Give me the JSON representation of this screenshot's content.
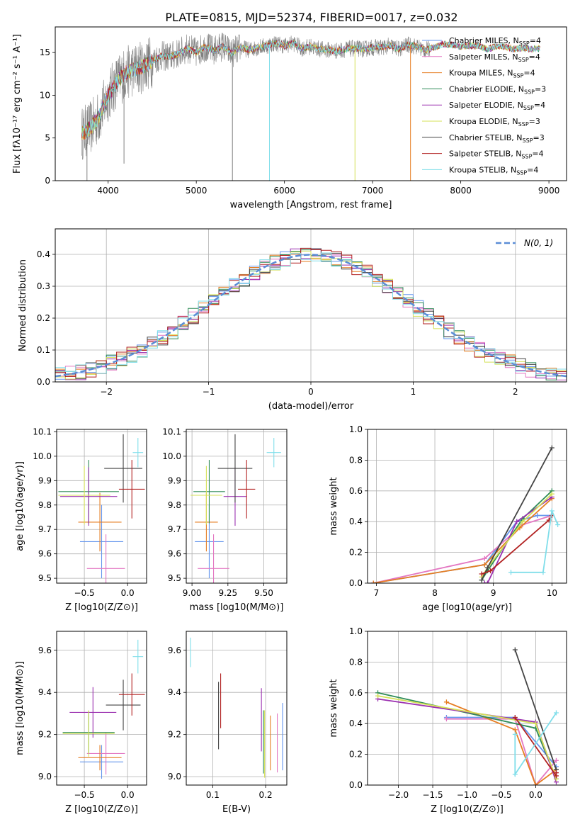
{
  "figure_title": "PLATE=0815, MJD=52374, FIBERID=0017, z=0.032",
  "colors": [
    "#6495ed",
    "#e377c2",
    "#e67e22",
    "#2e8b57",
    "#9b30b0",
    "#d4e157",
    "#444444",
    "#b22222",
    "#80deea"
  ],
  "chart_data": [
    {
      "id": "spectrum",
      "type": "line",
      "xlabel": "wavelength [Angstrom, rest frame]",
      "ylabel": "Flux [fλ10⁻¹⁷ erg cm⁻² s⁻¹ A⁻¹]",
      "xlim": [
        3400,
        9200
      ],
      "ylim": [
        0,
        18
      ],
      "xticks": [
        4000,
        5000,
        6000,
        7000,
        8000,
        9000
      ],
      "yticks": [
        0,
        5,
        10,
        15
      ],
      "grid": false,
      "legend_position": "top-right",
      "legend": [
        "Chabrier MILES, N_SSP=4",
        "Salpeter MILES, N_SSP=4",
        "Kroupa MILES, N_SSP=4",
        "Chabrier ELODIE, N_SSP=3",
        "Salpeter ELODIE, N_SSP=4",
        "Kroupa ELODIE, N_SSP=3",
        "Chabrier STELIB, N_SSP=3",
        "Salpeter STELIB, N_SSP=4",
        "Kroupa STELIB, N_SSP=4"
      ],
      "data_trace": {
        "x": [
          3700,
          3800,
          3900,
          4000,
          4100,
          4200,
          4300,
          4400,
          4500,
          4600,
          4700,
          4800,
          4900,
          5000,
          5100,
          5200,
          5300,
          5400,
          5500,
          5600,
          5700,
          5800,
          5900,
          6000,
          6100,
          6200,
          6300,
          6400,
          6500,
          6600,
          6700,
          6800,
          6900,
          7000,
          7100,
          7200,
          7300,
          7400,
          7500,
          7600,
          7700,
          7800,
          7900,
          8000,
          8100,
          8200,
          8300,
          8400,
          8500,
          8600,
          8700,
          8800,
          8900
        ],
        "y": [
          5.5,
          6.2,
          7.5,
          10.0,
          11.6,
          12.6,
          13.0,
          13.4,
          14.0,
          14.6,
          14.5,
          14.9,
          15.5,
          15.0,
          15.7,
          15.2,
          15.8,
          14.9,
          15.6,
          15.3,
          15.6,
          15.8,
          16.1,
          15.8,
          16.1,
          15.5,
          15.7,
          15.4,
          15.3,
          15.2,
          15.4,
          15.5,
          15.4,
          15.6,
          15.6,
          15.8,
          15.4,
          15.9,
          15.7,
          15.3,
          15.6,
          16.0,
          15.9,
          15.7,
          15.8,
          15.8,
          15.4,
          15.7,
          15.7,
          15.4,
          15.5,
          15.4,
          15.5
        ]
      }
    },
    {
      "id": "residuals",
      "type": "histogram",
      "xlabel": "(data-model)/error",
      "ylabel": "Normed distribution",
      "xlim": [
        -2.5,
        2.5
      ],
      "ylim": [
        0,
        0.48
      ],
      "xticks": [
        -2,
        -1,
        0,
        1,
        2
      ],
      "yticks": [
        0.0,
        0.1,
        0.2,
        0.3,
        0.4
      ],
      "grid": true,
      "legend_position": "top-right",
      "legend": [
        "N(0, 1)"
      ],
      "bin_width": 0.1
    },
    {
      "id": "age_vs_Z",
      "type": "errorbar",
      "xlabel": "Z [log10(Z/Z⊙)]",
      "ylabel": "age  [log10(age/yr)]",
      "xlim": [
        -0.82,
        0.22
      ],
      "ylim": [
        9.48,
        10.11
      ],
      "xticks": [
        -0.5,
        0.0
      ],
      "yticks": [
        9.5,
        9.6,
        9.7,
        9.8,
        9.9,
        10.0,
        10.1
      ],
      "grid": true,
      "points": [
        {
          "x": -0.3,
          "xerr": 0.25,
          "y": 9.65,
          "yerr": 0.15
        },
        {
          "x": -0.25,
          "xerr": 0.22,
          "y": 9.54,
          "yerr": 0.14
        },
        {
          "x": -0.32,
          "xerr": 0.25,
          "y": 9.73,
          "yerr": 0.12
        },
        {
          "x": -0.45,
          "xerr": 0.35,
          "y": 9.855,
          "yerr": 0.13
        },
        {
          "x": -0.45,
          "xerr": 0.33,
          "y": 9.835,
          "yerr": 0.12
        },
        {
          "x": -0.5,
          "xerr": 0.3,
          "y": 9.84,
          "yerr": 0.12
        },
        {
          "x": -0.05,
          "xerr": 0.22,
          "y": 9.95,
          "yerr": 0.14
        },
        {
          "x": 0.05,
          "xerr": 0.15,
          "y": 9.865,
          "yerr": 0.12
        },
        {
          "x": 0.12,
          "xerr": 0.06,
          "y": 10.015,
          "yerr": 0.06
        }
      ]
    },
    {
      "id": "age_vs_mass",
      "type": "errorbar",
      "xlabel": "mass [log10(M/M⊙)]",
      "ylabel": "",
      "xlim": [
        8.96,
        9.66
      ],
      "ylim": [
        9.48,
        10.11
      ],
      "xticks": [
        9.0,
        9.25,
        9.5
      ],
      "yticks": [
        9.5,
        9.6,
        9.7,
        9.8,
        9.9,
        10.0,
        10.1
      ],
      "grid": true,
      "points": [
        {
          "x": 9.12,
          "xerr": 0.1,
          "y": 9.65,
          "yerr": 0.15
        },
        {
          "x": 9.15,
          "xerr": 0.11,
          "y": 9.54,
          "yerr": 0.14
        },
        {
          "x": 9.1,
          "xerr": 0.08,
          "y": 9.73,
          "yerr": 0.12
        },
        {
          "x": 9.12,
          "xerr": 0.11,
          "y": 9.855,
          "yerr": 0.13
        },
        {
          "x": 9.3,
          "xerr": 0.08,
          "y": 9.835,
          "yerr": 0.12
        },
        {
          "x": 9.1,
          "xerr": 0.11,
          "y": 9.84,
          "yerr": 0.12
        },
        {
          "x": 9.3,
          "xerr": 0.12,
          "y": 9.95,
          "yerr": 0.14
        },
        {
          "x": 9.38,
          "xerr": 0.06,
          "y": 9.865,
          "yerr": 0.12
        },
        {
          "x": 9.57,
          "xerr": 0.05,
          "y": 10.015,
          "yerr": 0.06
        }
      ]
    },
    {
      "id": "mass_weight_vs_age",
      "type": "line",
      "xlabel": "age  [log10(age/yr)]",
      "ylabel": "mass weight",
      "xlim": [
        6.85,
        10.25
      ],
      "ylim": [
        0,
        1.0
      ],
      "xticks": [
        7,
        8,
        9,
        10
      ],
      "yticks": [
        0.0,
        0.2,
        0.4,
        0.6,
        0.8,
        1.0
      ],
      "grid": true,
      "series": [
        {
          "x": [
            6.95,
            8.85,
            9.4,
            9.75,
            10.0
          ],
          "y": [
            0.0,
            0.12,
            0.4,
            0.44,
            0.44
          ]
        },
        {
          "x": [
            6.95,
            8.85,
            9.5,
            10.0
          ],
          "y": [
            0.0,
            0.16,
            0.38,
            0.44
          ]
        },
        {
          "x": [
            6.95,
            8.85,
            9.45,
            10.0
          ],
          "y": [
            0.0,
            0.12,
            0.36,
            0.55
          ]
        },
        {
          "x": [
            8.8,
            8.9,
            9.5,
            10.0
          ],
          "y": [
            0.02,
            0.08,
            0.42,
            0.6
          ]
        },
        {
          "x": [
            8.85,
            8.9,
            9.4,
            10.0
          ],
          "y": [
            0.0,
            0.0,
            0.4,
            0.56
          ]
        },
        {
          "x": [
            8.8,
            8.9,
            9.5,
            10.0
          ],
          "y": [
            0.04,
            0.1,
            0.4,
            0.58
          ]
        },
        {
          "x": [
            8.8,
            8.9,
            10.0
          ],
          "y": [
            0.02,
            0.1,
            0.88
          ]
        },
        {
          "x": [
            8.8,
            8.95,
            9.95,
            10.0
          ],
          "y": [
            0.06,
            0.08,
            0.41,
            0.44
          ]
        },
        {
          "x": [
            9.3,
            9.85,
            10.0,
            10.1
          ],
          "y": [
            0.07,
            0.07,
            0.47,
            0.38
          ]
        }
      ]
    },
    {
      "id": "mass_vs_Z",
      "type": "errorbar",
      "xlabel": "Z [log10(Z/Z⊙)]",
      "ylabel": "mass [log10(M/M⊙)]",
      "xlim": [
        -0.82,
        0.22
      ],
      "ylim": [
        8.96,
        9.69
      ],
      "xticks": [
        -0.5,
        0.0
      ],
      "yticks": [
        9.0,
        9.2,
        9.4,
        9.6
      ],
      "grid": true,
      "points": [
        {
          "x": -0.3,
          "xerr": 0.25,
          "y": 9.07,
          "yerr": 0.08
        },
        {
          "x": -0.25,
          "xerr": 0.22,
          "y": 9.11,
          "yerr": 0.1
        },
        {
          "x": -0.32,
          "xerr": 0.25,
          "y": 9.09,
          "yerr": 0.06
        },
        {
          "x": -0.45,
          "xerr": 0.3,
          "y": 9.21,
          "yerr": 0.1
        },
        {
          "x": -0.4,
          "xerr": 0.27,
          "y": 9.305,
          "yerr": 0.12
        },
        {
          "x": -0.45,
          "xerr": 0.3,
          "y": 9.205,
          "yerr": 0.11
        },
        {
          "x": -0.05,
          "xerr": 0.2,
          "y": 9.34,
          "yerr": 0.12
        },
        {
          "x": 0.05,
          "xerr": 0.15,
          "y": 9.39,
          "yerr": 0.1
        },
        {
          "x": 0.12,
          "xerr": 0.06,
          "y": 9.57,
          "yerr": 0.08
        }
      ]
    },
    {
      "id": "mass_vs_EBV",
      "type": "errorbar",
      "xlabel": "E(B-V)",
      "ylabel": "",
      "xlim": [
        0.05,
        0.24
      ],
      "ylim": [
        8.96,
        9.69
      ],
      "xticks": [
        0.1,
        0.2
      ],
      "yticks": [
        9.0,
        9.2,
        9.4,
        9.6
      ],
      "grid": true,
      "points": [
        {
          "x": 0.232,
          "y": 9.19,
          "yerr": 0.16
        },
        {
          "x": 0.222,
          "y": 9.16,
          "yerr": 0.14
        },
        {
          "x": 0.209,
          "y": 9.16,
          "yerr": 0.13
        },
        {
          "x": 0.196,
          "y": 9.165,
          "yerr": 0.15
        },
        {
          "x": 0.192,
          "y": 9.27,
          "yerr": 0.15
        },
        {
          "x": 0.198,
          "y": 9.155,
          "yerr": 0.16
        },
        {
          "x": 0.111,
          "y": 9.29,
          "yerr": 0.16
        },
        {
          "x": 0.115,
          "y": 9.36,
          "yerr": 0.13
        },
        {
          "x": 0.058,
          "y": 9.59,
          "yerr": 0.07
        }
      ]
    },
    {
      "id": "mass_weight_vs_Z",
      "type": "line",
      "xlabel": "Z [log10(Z/Z⊙)]",
      "ylabel": "mass weight",
      "xlim": [
        -2.45,
        0.45
      ],
      "ylim": [
        0,
        1.0
      ],
      "xticks": [
        -2.0,
        -1.5,
        -1.0,
        -0.5,
        0.0
      ],
      "yticks": [
        0.0,
        0.2,
        0.4,
        0.6,
        0.8,
        1.0
      ],
      "grid": true,
      "series": [
        {
          "x": [
            -1.3,
            -0.3,
            0.3
          ],
          "y": [
            0.44,
            0.44,
            0.12
          ]
        },
        {
          "x": [
            -1.3,
            -0.3,
            0.0,
            0.3
          ],
          "y": [
            0.43,
            0.43,
            0.0,
            0.16
          ]
        },
        {
          "x": [
            -1.3,
            -0.3,
            0.0,
            0.3
          ],
          "y": [
            0.54,
            0.36,
            0.0,
            0.1
          ]
        },
        {
          "x": [
            -2.3,
            0.0,
            0.3
          ],
          "y": [
            0.6,
            0.37,
            0.04
          ]
        },
        {
          "x": [
            -2.3,
            0.0,
            0.3
          ],
          "y": [
            0.56,
            0.41,
            0.02
          ]
        },
        {
          "x": [
            -2.3,
            0.0,
            0.3
          ],
          "y": [
            0.58,
            0.4,
            0.04
          ]
        },
        {
          "x": [
            -0.3,
            0.3
          ],
          "y": [
            0.88,
            0.1
          ]
        },
        {
          "x": [
            -0.3,
            0.3,
            0.3
          ],
          "y": [
            0.44,
            0.06,
            0.08
          ]
        },
        {
          "x": [
            -0.3,
            -0.3,
            0.3
          ],
          "y": [
            0.33,
            0.07,
            0.47
          ]
        }
      ]
    }
  ]
}
